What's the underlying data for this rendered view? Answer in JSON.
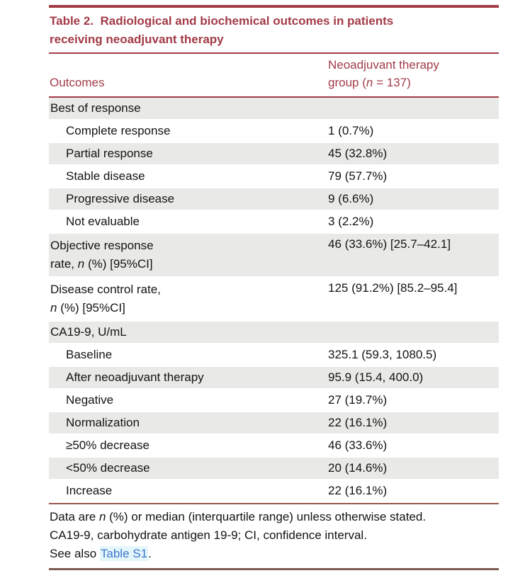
{
  "colors": {
    "accent": "#A23B47",
    "row-shade": "#E9E9E7",
    "text": "#131313",
    "link": "#3B76CC",
    "link-bg": "#E4F6FB",
    "rule-soft": "#9A564F",
    "rule-bottom": "#7C5A50"
  },
  "table": {
    "title_line1": "Table 2.  Radiological and biochemical outcomes in patients",
    "title_line2": "receiving neoadjuvant therapy",
    "header": {
      "col1": "Outcomes",
      "col2_line1": "Neoadjuvant therapy",
      "col2_line2_pre": "group (",
      "col2_italic": "n",
      "col2_line2_post": " = 137)"
    },
    "rows": [
      {
        "label": "Best of response",
        "value": "",
        "section": true,
        "shaded": true,
        "indent": false
      },
      {
        "label": "Complete response",
        "value": "1 (0.7%)",
        "shaded": false,
        "indent": true
      },
      {
        "label": "Partial response",
        "value": "45 (32.8%)",
        "shaded": true,
        "indent": true
      },
      {
        "label": "Stable disease",
        "value": "79 (57.7%)",
        "shaded": false,
        "indent": true
      },
      {
        "label": "Progressive disease",
        "value": "9 (6.6%)",
        "shaded": true,
        "indent": true
      },
      {
        "label": "Not evaluable",
        "value": "3 (2.2%)",
        "shaded": false,
        "indent": true
      },
      {
        "label_line1": "Objective response",
        "label_line2_pre": "rate, ",
        "label_italic": "n",
        "label_line2_post": " (%) [95%CI]",
        "value": "46 (33.6%) [25.7–42.1]",
        "shaded": true,
        "indent": false
      },
      {
        "label_line1": "Disease control rate,",
        "label_line2_pre": "",
        "label_italic": "n",
        "label_line2_post": " (%) [95%CI]",
        "value": "125 (91.2%) [85.2–95.4]",
        "shaded": false,
        "indent": false
      },
      {
        "label": "CA19-9, U/mL",
        "value": "",
        "section": true,
        "shaded": true,
        "indent": false
      },
      {
        "label": "Baseline",
        "value": "325.1 (59.3, 1080.5)",
        "shaded": false,
        "indent": true
      },
      {
        "label": "After neoadjuvant therapy",
        "value": "95.9 (15.4, 400.0)",
        "shaded": true,
        "indent": true
      },
      {
        "label": "Negative",
        "value": "27 (19.7%)",
        "shaded": false,
        "indent": true
      },
      {
        "label": "Normalization",
        "value": "22 (16.1%)",
        "shaded": true,
        "indent": true
      },
      {
        "label": "≥50% decrease",
        "value": "46 (33.6%)",
        "shaded": false,
        "indent": true
      },
      {
        "label": "<50% decrease",
        "value": "20 (14.6%)",
        "shaded": true,
        "indent": true
      },
      {
        "label": "Increase",
        "value": "22 (16.1%)",
        "shaded": false,
        "indent": true
      }
    ],
    "footnote": {
      "line1_pre": "Data are ",
      "line1_italic": "n",
      "line1_post": " (%) or median (interquartile range) unless otherwise stated.",
      "line2": "CA19-9, carbohydrate antigen 19-9; CI, confidence interval.",
      "line3_pre": "See also ",
      "see_also_link": "Table S1",
      "line3_post": "."
    }
  }
}
